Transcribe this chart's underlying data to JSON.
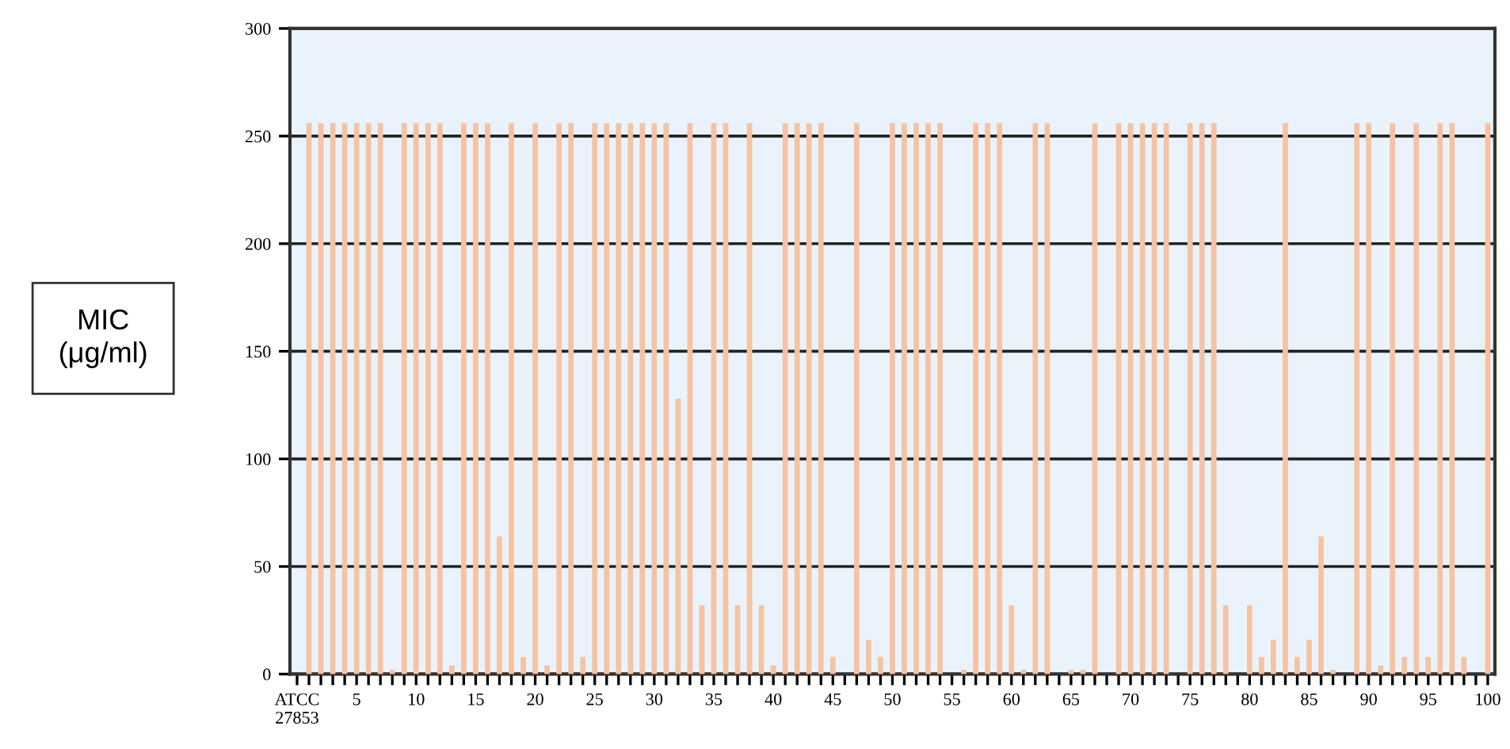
{
  "chart_data": {
    "type": "bar",
    "ylabel": "MIC\n(μg/ml)",
    "categories": [
      "ATCC\n27853",
      null,
      null,
      null,
      null,
      "5",
      null,
      null,
      null,
      null,
      "10",
      null,
      null,
      null,
      null,
      "15",
      null,
      null,
      null,
      null,
      "20",
      null,
      null,
      null,
      null,
      "25",
      null,
      null,
      null,
      null,
      "30",
      null,
      null,
      null,
      null,
      "35",
      null,
      null,
      null,
      null,
      "40",
      null,
      null,
      null,
      null,
      "45",
      null,
      null,
      null,
      null,
      "50",
      null,
      null,
      null,
      null,
      "55",
      null,
      null,
      null,
      null,
      "60",
      null,
      null,
      null,
      null,
      "65",
      null,
      null,
      null,
      null,
      "70",
      null,
      null,
      null,
      null,
      "75",
      null,
      null,
      null,
      null,
      "80",
      null,
      null,
      null,
      null,
      "85",
      null,
      null,
      null,
      null,
      "90",
      null,
      null,
      null,
      null,
      "95",
      null,
      null,
      null,
      null,
      "100"
    ],
    "values": [
      null,
      256,
      256,
      256,
      256,
      256,
      256,
      256,
      2,
      256,
      256,
      256,
      256,
      4,
      256,
      256,
      256,
      64,
      256,
      8,
      256,
      4,
      256,
      256,
      8,
      256,
      256,
      256,
      256,
      256,
      256,
      256,
      128,
      256,
      32,
      256,
      256,
      32,
      256,
      32,
      4,
      256,
      256,
      256,
      256,
      8,
      0,
      256,
      16,
      8,
      256,
      256,
      256,
      256,
      256,
      null,
      2,
      256,
      256,
      256,
      32,
      2,
      256,
      256,
      null,
      2,
      2,
      256,
      0,
      256,
      256,
      256,
      256,
      256,
      null,
      256,
      256,
      256,
      32,
      null,
      32,
      8,
      16,
      256,
      8,
      16,
      64,
      2,
      0,
      256,
      256,
      4,
      256,
      8,
      256,
      8,
      256,
      256,
      8,
      0,
      256
    ],
    "color": "#f5c3a3",
    "ylim": [
      0,
      300
    ],
    "yticks": [
      0,
      50,
      100,
      150,
      200,
      250,
      300
    ],
    "grid": "y"
  }
}
